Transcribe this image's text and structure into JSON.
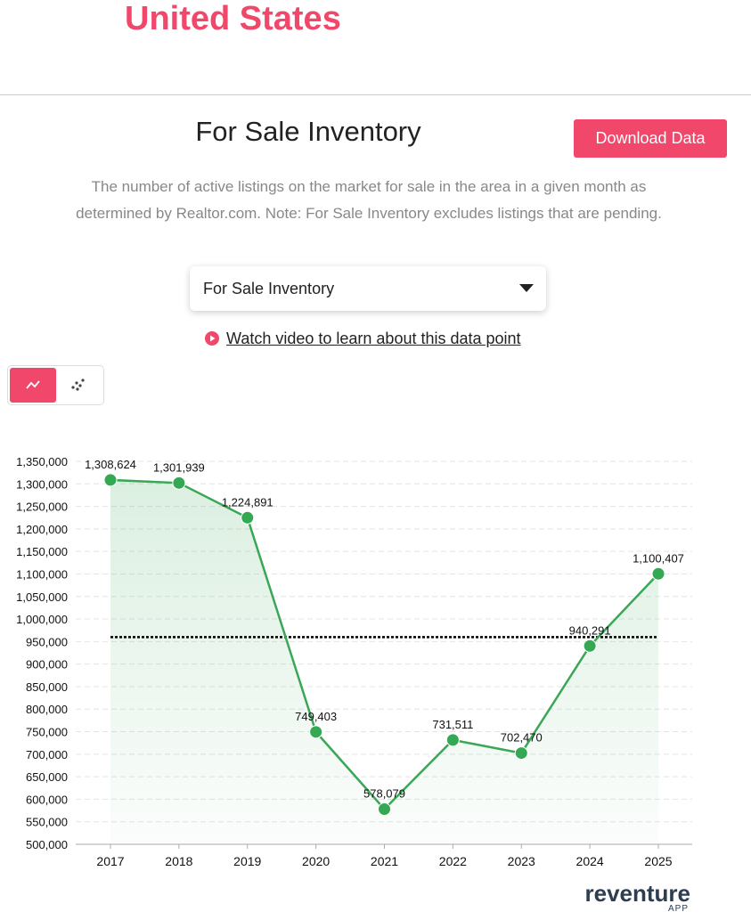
{
  "header": {
    "title": "United States"
  },
  "section": {
    "title": "For Sale Inventory",
    "button": "Download Data",
    "description": "The number of active listings on the market for sale in the area in a given month as determined by Realtor.com. Note: For Sale Inventory excludes listings that are pending.",
    "dropdown": "For Sale Inventory",
    "video_link": "Watch video to learn about this data point"
  },
  "chart_data": {
    "type": "line",
    "categories": [
      "2017",
      "2018",
      "2019",
      "2020",
      "2021",
      "2022",
      "2023",
      "2024",
      "2025"
    ],
    "values": [
      1308624,
      1301939,
      1224891,
      749403,
      578079,
      731511,
      702470,
      940291,
      1100407
    ],
    "value_labels": [
      "1,308,624",
      "1,301,939",
      "1,224,891",
      "749,403",
      "578,079",
      "731,511",
      "702,470",
      "940,291",
      "1,100,407"
    ],
    "color": "#3aa757",
    "reference_line": 959735,
    "grid": true,
    "ylim": [
      500000,
      1350000
    ],
    "yticks": [
      {
        "value": 500000,
        "label": "500,000"
      },
      {
        "value": 550000,
        "label": "550,000"
      },
      {
        "value": 600000,
        "label": "600,000"
      },
      {
        "value": 650000,
        "label": "650,000"
      },
      {
        "value": 700000,
        "label": "700,000"
      },
      {
        "value": 750000,
        "label": "750,000"
      },
      {
        "value": 800000,
        "label": "800,000"
      },
      {
        "value": 850000,
        "label": "850,000"
      },
      {
        "value": 900000,
        "label": "900,000"
      },
      {
        "value": 950000,
        "label": "950,000"
      },
      {
        "value": 1000000,
        "label": "1,000,000"
      },
      {
        "value": 1050000,
        "label": "1,050,000"
      },
      {
        "value": 1100000,
        "label": "1,100,000"
      },
      {
        "value": 1150000,
        "label": "1,150,000"
      },
      {
        "value": 1200000,
        "label": "1,200,000"
      },
      {
        "value": 1250000,
        "label": "1,250,000"
      },
      {
        "value": 1300000,
        "label": "1,300,000"
      },
      {
        "value": 1350000,
        "label": "1,350,000"
      }
    ]
  },
  "branding": {
    "name": "reventure",
    "sub": "APP"
  }
}
